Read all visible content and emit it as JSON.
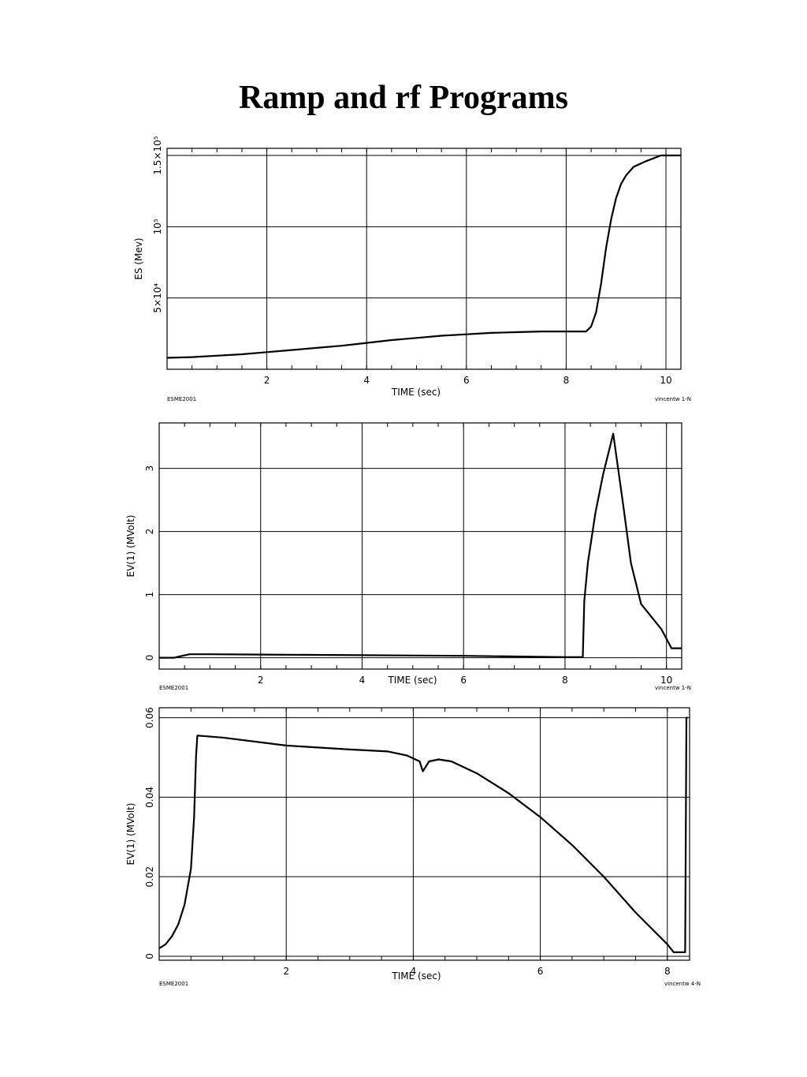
{
  "title": "Ramp and rf Programs",
  "chart_data": [
    {
      "type": "line",
      "xlabel": "TIME (sec)",
      "ylabel": "ES (Mev)",
      "xlim": [
        0,
        10.3
      ],
      "ylim": [
        0,
        1.55
      ],
      "x_ticks": [
        {
          "v": 2,
          "label": "2"
        },
        {
          "v": 4,
          "label": "4"
        },
        {
          "v": 6,
          "label": "6"
        },
        {
          "v": 8,
          "label": "8"
        },
        {
          "v": 10,
          "label": "10"
        }
      ],
      "y_ticks": [
        {
          "v": 0.5,
          "label": "5×10⁴"
        },
        {
          "v": 1.0,
          "label": "10⁵"
        },
        {
          "v": 1.5,
          "label": "1.5×10⁵"
        }
      ],
      "grid": true,
      "footer_left": "ESME2001",
      "footer_right": "vincentw   1-N",
      "series": [
        {
          "x": [
            0,
            0.5,
            1,
            1.5,
            2,
            2.5,
            3,
            3.5,
            4,
            4.5,
            5,
            5.5,
            6,
            6.5,
            7,
            7.5,
            8,
            8.4,
            8.5,
            8.6,
            8.7,
            8.8,
            8.9,
            9.0,
            9.1,
            9.2,
            9.35,
            9.6,
            9.9,
            10.3
          ],
          "y": [
            0.08,
            0.085,
            0.095,
            0.105,
            0.12,
            0.135,
            0.15,
            0.165,
            0.185,
            0.205,
            0.22,
            0.235,
            0.245,
            0.255,
            0.26,
            0.265,
            0.265,
            0.265,
            0.3,
            0.4,
            0.6,
            0.85,
            1.05,
            1.2,
            1.3,
            1.36,
            1.42,
            1.46,
            1.5,
            1.5
          ]
        }
      ]
    },
    {
      "type": "line",
      "xlabel": "TIME (sec)",
      "ylabel": "EV(1) (MVolt)",
      "xlim": [
        0,
        10.3
      ],
      "ylim": [
        -0.18,
        3.72
      ],
      "x_ticks": [
        {
          "v": 2,
          "label": "2"
        },
        {
          "v": 4,
          "label": "4"
        },
        {
          "v": 6,
          "label": "6"
        },
        {
          "v": 8,
          "label": "8"
        },
        {
          "v": 10,
          "label": "10"
        }
      ],
      "y_ticks": [
        {
          "v": 0,
          "label": "0"
        },
        {
          "v": 1,
          "label": "1"
        },
        {
          "v": 2,
          "label": "2"
        },
        {
          "v": 3,
          "label": "3"
        }
      ],
      "grid": true,
      "footer_left": "ESME2001",
      "footer_right": "vincentw   1-N",
      "series": [
        {
          "x": [
            0,
            0.3,
            0.4,
            0.6,
            1,
            2,
            3,
            4,
            5,
            6,
            7,
            8,
            8.35,
            8.38,
            8.45,
            8.6,
            8.75,
            8.95,
            9.15,
            9.3,
            9.5,
            9.7,
            9.9,
            10.1,
            10.3
          ],
          "y": [
            0,
            0,
            0.02,
            0.055,
            0.055,
            0.05,
            0.045,
            0.04,
            0.035,
            0.03,
            0.02,
            0.01,
            0.01,
            0.9,
            1.5,
            2.3,
            2.9,
            3.55,
            2.4,
            1.5,
            0.85,
            0.65,
            0.45,
            0.15,
            0.15
          ]
        }
      ]
    },
    {
      "type": "line",
      "xlabel": "TIME (sec)",
      "ylabel": "EV(1) (MVolt)",
      "xlim": [
        0,
        8.35
      ],
      "ylim": [
        -0.001,
        0.0625
      ],
      "x_ticks": [
        {
          "v": 2,
          "label": "2"
        },
        {
          "v": 4,
          "label": "4"
        },
        {
          "v": 6,
          "label": "6"
        },
        {
          "v": 8,
          "label": "8"
        }
      ],
      "y_ticks": [
        {
          "v": 0,
          "label": "0"
        },
        {
          "v": 0.02,
          "label": "0.02"
        },
        {
          "v": 0.04,
          "label": "0.04"
        },
        {
          "v": 0.06,
          "label": "0.06"
        }
      ],
      "grid": true,
      "footer_left": "ESME2001",
      "footer_right": "vincentw   4-N",
      "series": [
        {
          "x": [
            0,
            0.1,
            0.2,
            0.3,
            0.4,
            0.5,
            0.55,
            0.58,
            0.6,
            1,
            2,
            3,
            3.6,
            3.9,
            4.1,
            4.15,
            4.25,
            4.4,
            4.6,
            5,
            5.5,
            6,
            6.5,
            7,
            7.5,
            8,
            8.1,
            8.2,
            8.28,
            8.3,
            8.32
          ],
          "y": [
            0.002,
            0.003,
            0.005,
            0.008,
            0.013,
            0.022,
            0.035,
            0.05,
            0.0555,
            0.055,
            0.053,
            0.052,
            0.0515,
            0.0505,
            0.049,
            0.0465,
            0.049,
            0.0495,
            0.049,
            0.046,
            0.041,
            0.035,
            0.028,
            0.02,
            0.011,
            0.003,
            0.001,
            0.001,
            0.001,
            0.06,
            0.06
          ]
        }
      ]
    }
  ]
}
